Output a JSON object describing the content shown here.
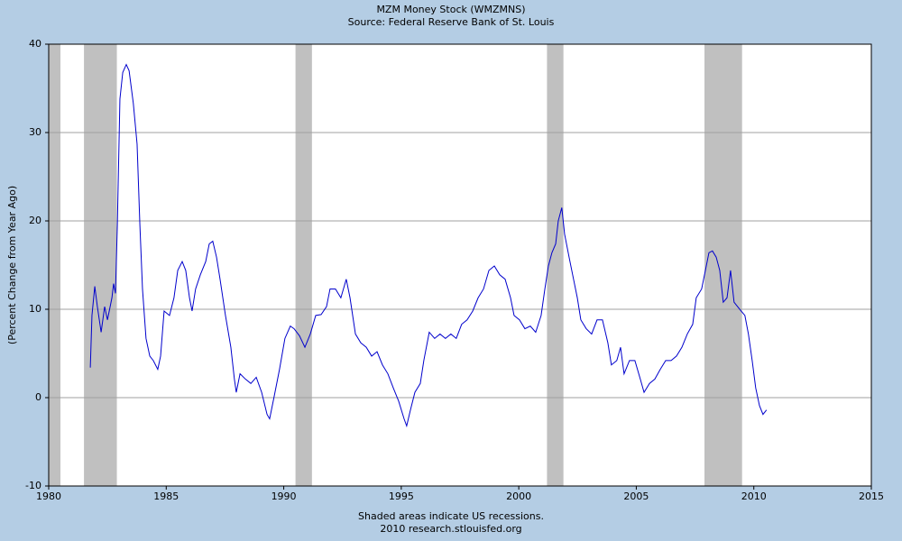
{
  "chart_data": {
    "type": "line",
    "title": "MZM Money Stock (WMZMNS)",
    "subtitle": "Source: Federal Reserve Bank of St. Louis",
    "ylabel": "(Percent Change from Year Ago)",
    "notes": [
      "Shaded areas indicate US recessions.",
      "2010 research.stlouisfed.org"
    ],
    "color": "#0000cc",
    "recession_color": "#c0c0c0",
    "grid": true,
    "xlim": [
      1980,
      2015
    ],
    "xticks": [
      1980,
      1985,
      1990,
      1995,
      2000,
      2005,
      2010,
      2015
    ],
    "ylim": [
      -10,
      40
    ],
    "yticks": [
      -10,
      0,
      10,
      20,
      30,
      40
    ],
    "recessions": [
      [
        1980.0,
        1980.5
      ],
      [
        1981.5,
        1982.9
      ],
      [
        1990.5,
        1991.2
      ],
      [
        2001.2,
        2001.9
      ],
      [
        2007.9,
        2009.5
      ]
    ],
    "x": [
      1981.77,
      1981.84,
      1981.96,
      1982.07,
      1982.23,
      1982.38,
      1982.5,
      1982.69,
      1982.76,
      1982.84,
      1982.92,
      1983.03,
      1983.15,
      1983.3,
      1983.42,
      1983.6,
      1983.76,
      1983.88,
      1983.99,
      1984.14,
      1984.3,
      1984.45,
      1984.64,
      1984.76,
      1984.91,
      1985.14,
      1985.33,
      1985.49,
      1985.68,
      1985.83,
      1985.99,
      1986.1,
      1986.25,
      1986.45,
      1986.68,
      1986.83,
      1986.98,
      1987.14,
      1987.29,
      1987.52,
      1987.75,
      1987.9,
      1987.98,
      1988.14,
      1988.37,
      1988.6,
      1988.83,
      1989.06,
      1989.29,
      1989.4,
      1989.59,
      1989.82,
      1990.05,
      1990.28,
      1990.44,
      1990.67,
      1990.9,
      1991.13,
      1991.36,
      1991.59,
      1991.82,
      1991.97,
      1992.2,
      1992.43,
      1992.66,
      1992.82,
      1993.05,
      1993.28,
      1993.51,
      1993.74,
      1993.97,
      1994.2,
      1994.43,
      1994.66,
      1994.89,
      1995.12,
      1995.23,
      1995.39,
      1995.58,
      1995.81,
      1995.96,
      1996.19,
      1996.42,
      1996.65,
      1996.88,
      1997.11,
      1997.34,
      1997.57,
      1997.8,
      1998.04,
      1998.27,
      1998.5,
      1998.73,
      1998.96,
      1999.19,
      1999.42,
      1999.65,
      1999.8,
      2000.03,
      2000.26,
      2000.49,
      2000.72,
      2000.95,
      2001.11,
      2001.26,
      2001.41,
      2001.57,
      2001.68,
      2001.83,
      2001.95,
      2002.14,
      2002.33,
      2002.49,
      2002.64,
      2002.87,
      2003.1,
      2003.33,
      2003.56,
      2003.79,
      2003.94,
      2004.17,
      2004.33,
      2004.48,
      2004.71,
      2004.94,
      2005.17,
      2005.33,
      2005.56,
      2005.79,
      2006.02,
      2006.25,
      2006.48,
      2006.71,
      2006.94,
      2007.17,
      2007.4,
      2007.55,
      2007.78,
      2007.94,
      2008.09,
      2008.24,
      2008.4,
      2008.55,
      2008.7,
      2008.86,
      2009.01,
      2009.16,
      2009.31,
      2009.46,
      2009.62,
      2009.77,
      2009.93,
      2010.08,
      2010.24,
      2010.39,
      2010.54
    ],
    "values": [
      3.4,
      9.3,
      12.6,
      10.3,
      7.4,
      10.3,
      8.8,
      11.3,
      12.9,
      11.8,
      19.5,
      33.8,
      36.8,
      37.7,
      37.0,
      33.3,
      28.7,
      19.5,
      12.3,
      6.7,
      4.7,
      4.2,
      3.2,
      4.7,
      9.8,
      9.3,
      11.3,
      14.4,
      15.4,
      14.4,
      11.3,
      9.8,
      12.3,
      13.9,
      15.4,
      17.4,
      17.7,
      15.9,
      13.4,
      9.3,
      5.7,
      2.1,
      0.6,
      2.7,
      2.1,
      1.6,
      2.3,
      0.6,
      -1.9,
      -2.4,
      0.1,
      3.2,
      6.7,
      8.1,
      7.8,
      7.0,
      5.7,
      7.2,
      9.3,
      9.4,
      10.3,
      12.3,
      12.3,
      11.3,
      13.4,
      11.3,
      7.2,
      6.2,
      5.7,
      4.7,
      5.2,
      3.7,
      2.7,
      1.1,
      -0.4,
      -2.4,
      -3.2,
      -1.4,
      0.6,
      1.6,
      4.2,
      7.4,
      6.7,
      7.2,
      6.7,
      7.2,
      6.7,
      8.3,
      8.8,
      9.8,
      11.3,
      12.3,
      14.4,
      14.9,
      13.9,
      13.4,
      11.3,
      9.3,
      8.8,
      7.8,
      8.1,
      7.4,
      9.3,
      12.3,
      14.9,
      16.4,
      17.4,
      20.0,
      21.5,
      18.5,
      15.9,
      13.4,
      11.3,
      8.8,
      7.8,
      7.2,
      8.8,
      8.8,
      6.2,
      3.7,
      4.2,
      5.7,
      2.7,
      4.2,
      4.2,
      2.1,
      0.6,
      1.6,
      2.1,
      3.2,
      4.2,
      4.2,
      4.7,
      5.7,
      7.2,
      8.3,
      11.3,
      12.3,
      14.4,
      16.4,
      16.6,
      15.9,
      14.4,
      10.8,
      11.3,
      14.4,
      10.8,
      10.3,
      9.8,
      9.3,
      7.2,
      4.2,
      1.1,
      -0.9,
      -1.9,
      -1.4
    ]
  }
}
